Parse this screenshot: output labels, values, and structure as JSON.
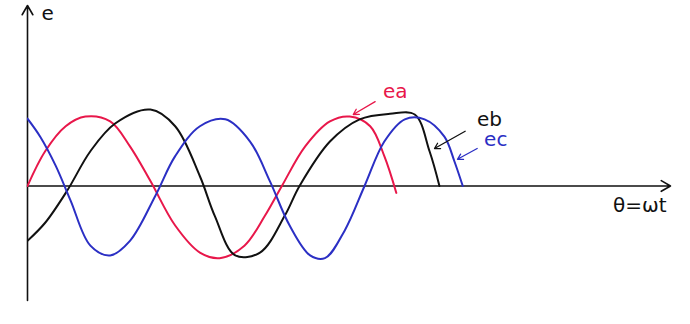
{
  "chart_data": {
    "type": "line",
    "x_label": "θ=ωt",
    "y_label": "e",
    "xlim": [
      0,
      910
    ],
    "ylim": [
      -1.65,
      2.6
    ],
    "tick_labels": false,
    "grid": false,
    "series": [
      {
        "name": "ea",
        "color": "#e8174a",
        "x": [
          0,
          25,
          54,
          82,
          117,
          145,
          174,
          209,
          244,
          272,
          307,
          336,
          360,
          393,
          428,
          456,
          485,
          505,
          522
        ],
        "values": [
          0,
          0.5,
          0.86,
          1.0,
          0.93,
          0.57,
          0.07,
          -0.57,
          -0.96,
          -1.04,
          -0.86,
          -0.43,
          0,
          0.57,
          0.93,
          1.0,
          0.86,
          0.43,
          -0.1
        ]
      },
      {
        "name": "eb",
        "color": "#111111",
        "x": [
          0,
          25,
          56,
          89,
          124,
          174,
          209,
          244,
          265,
          294,
          329,
          364,
          385,
          428,
          470,
          513,
          548,
          569,
          583
        ],
        "values": [
          -0.79,
          -0.53,
          -0.07,
          0.5,
          0.9,
          1.1,
          0.86,
          0.14,
          -0.43,
          -1.0,
          -0.96,
          -0.43,
          0,
          0.64,
          0.96,
          1.04,
          1.03,
          0.5,
          0
        ]
      },
      {
        "name": "ec",
        "color": "#2b2fc4",
        "x": [
          0,
          18,
          40,
          61,
          89,
          117,
          145,
          181,
          209,
          244,
          280,
          315,
          343,
          371,
          400,
          421,
          449,
          477,
          505,
          534,
          562,
          590,
          604,
          616
        ],
        "values": [
          0.97,
          0.71,
          0.29,
          -0.21,
          -0.86,
          -1.0,
          -0.79,
          -0.14,
          0.43,
          0.86,
          0.96,
          0.64,
          0.07,
          -0.57,
          -1.0,
          -1.04,
          -0.64,
          0,
          0.64,
          0.96,
          0.96,
          0.71,
          0.36,
          0
        ]
      }
    ]
  }
}
